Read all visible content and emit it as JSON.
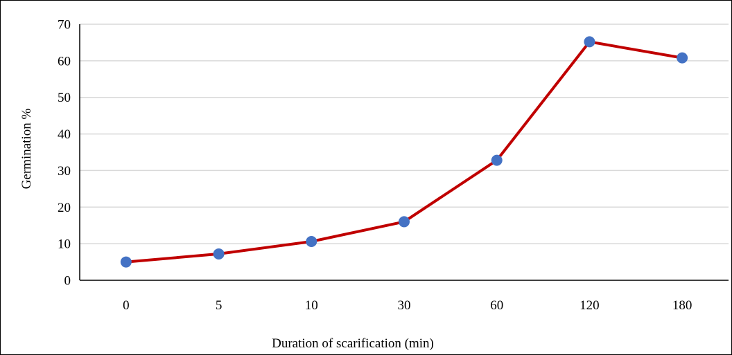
{
  "chart_data": {
    "type": "line",
    "categories": [
      "0",
      "5",
      "10",
      "30",
      "60",
      "120",
      "180"
    ],
    "series": [
      {
        "values": [
          5,
          7.2,
          10.6,
          16,
          32.8,
          65.2,
          60.8
        ]
      }
    ],
    "xlabel": "Duration of scarification (min)",
    "ylabel": "Germination %",
    "ylim": [
      0,
      70
    ],
    "y_ticks": [
      0,
      10,
      20,
      30,
      40,
      50,
      60,
      70
    ],
    "grid": "horizontal",
    "legend": "none",
    "colors": {
      "line": "#c00000",
      "marker": "#4472c4",
      "grid": "#d9d9d9",
      "axis": "#000000"
    }
  }
}
